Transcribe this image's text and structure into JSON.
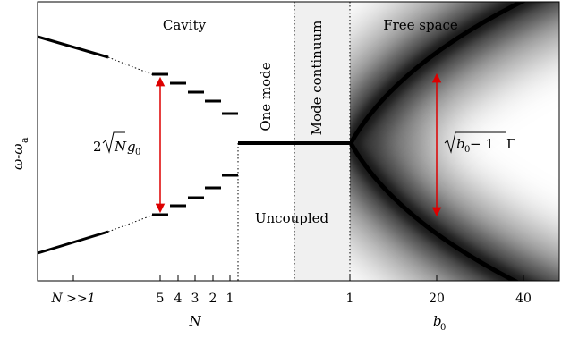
{
  "regions": {
    "cavity": "Cavity",
    "free_space": "Free space",
    "one_mode": "One mode",
    "mode_continuum": "Mode continuum",
    "uncoupled": "Uncoupled"
  },
  "annotations": {
    "cavity_splitting": "2√Ng₀",
    "cavity_splitting_parts": {
      "coef": "2",
      "radicand": "N",
      "g": "g",
      "sub": "0"
    },
    "free_space_splitting": "√(b₀−1)Γ",
    "free_space_splitting_parts": {
      "radicand_b": "b",
      "sub": "0",
      "minus": " − 1",
      "gamma": "Γ"
    }
  },
  "axes": {
    "ylabel": "ω-ω",
    "ylabel_sub": "a",
    "x_left_title": "N",
    "x_right_title": "b",
    "x_right_title_sub": "0",
    "x_left_ticks": [
      "N >>1",
      "5",
      "4",
      "3",
      "2",
      "1"
    ],
    "x_right_ticks": [
      "1",
      "20",
      "40"
    ]
  },
  "colors": {
    "arrow": "#dd0000",
    "continuum_band": "#f0f0f0",
    "line": "#000000"
  }
}
